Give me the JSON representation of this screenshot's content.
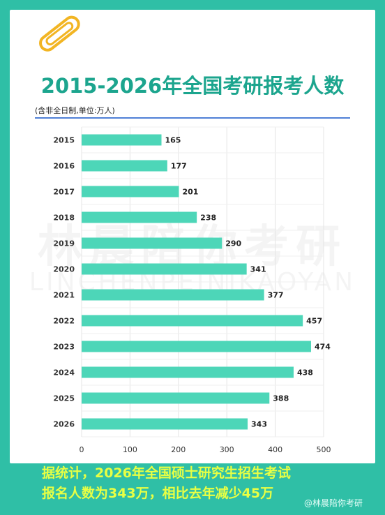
{
  "title": "2015-2026年全国考研报考人数",
  "subtitle": "(含非全日制,单位:万人)",
  "watermark": "林晨陪你考研",
  "watermark_latin": "LINCHENPEINIKAOYAN",
  "caption_line1": "据统计，2026年全国硕士研究生招生考试",
  "caption_line2": "报名人数为343万，相比去年减少45万",
  "weibo_tag": "@林晨陪你考研",
  "colors": {
    "bar": "#4dd6b8",
    "title": "#1ca58e",
    "caption": "#e8ff44",
    "background": "#2fbfa6"
  },
  "chart_data": {
    "type": "bar",
    "orientation": "horizontal",
    "title": "2015-2026年全国考研报考人数",
    "subtitle": "(含非全日制,单位:万人)",
    "categories": [
      "2015",
      "2016",
      "2017",
      "2018",
      "2019",
      "2020",
      "2021",
      "2022",
      "2023",
      "2024",
      "2025",
      "2026"
    ],
    "values": [
      165,
      177,
      201,
      238,
      290,
      341,
      377,
      457,
      474,
      438,
      388,
      343
    ],
    "xlim": [
      0,
      500
    ],
    "xticks": [
      0,
      100,
      200,
      300,
      400,
      500
    ],
    "grid": true,
    "legend": "none"
  }
}
